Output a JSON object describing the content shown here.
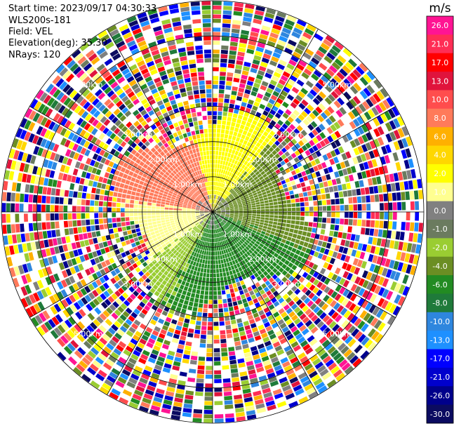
{
  "info": {
    "start_time": "Start time: 2023/09/17 04:30:33",
    "instrument": "WLS200s-181",
    "field": "Field: VEL",
    "elevation": "Elevation(deg): 35.30",
    "nrays": "NRays: 120"
  },
  "chart_data": {
    "type": "heatmap",
    "subtype": "ppi-polar",
    "field": "VEL",
    "nrays": 120,
    "max_range_km": 6.0,
    "range_rings_km": [
      1.0,
      2.0,
      3.0,
      5.0
    ],
    "ring_labels": [
      "1.00km",
      "2.00km",
      "3.00km",
      "5.00km"
    ],
    "colorbar": {
      "title": "m/s",
      "vmin": -30.0,
      "vmax": 30.0,
      "ticks": [
        "26.0",
        "21.0",
        "17.0",
        "13.0",
        "10.0",
        "8.0",
        "6.0",
        "4.0",
        "2.0",
        "1.0",
        "0.0",
        "-1.0",
        "-2.0",
        "-4.0",
        "-6.0",
        "-8.0",
        "-10.0",
        "-13.0",
        "-17.0",
        "-21.0",
        "-26.0",
        "-30.0"
      ],
      "colors": [
        "#ff1493",
        "#ff2d55",
        "#ff0000",
        "#e0143c",
        "#ff4d4d",
        "#ff7a5a",
        "#ffb000",
        "#ffd700",
        "#ffff00",
        "#ffff90",
        "#808080",
        "#6b7b5f",
        "#9acd32",
        "#6b8e23",
        "#228b22",
        "#1f7a3a",
        "#2e86de",
        "#1e90ff",
        "#0000ff",
        "#0000cd",
        "#00008b",
        "#0b0b60"
      ]
    },
    "regions": [
      {
        "direction": "north-west",
        "range_km": [
          0,
          2.5
        ],
        "value_approx": 4.0
      },
      {
        "direction": "north-east",
        "range_km": [
          0,
          2.5
        ],
        "value_approx": -4.0
      },
      {
        "direction": "south-east",
        "range_km": [
          0,
          2.5
        ],
        "value_approx": -6.0
      },
      {
        "direction": "south-west",
        "range_km": [
          0,
          2.5
        ],
        "value_approx": 2.0
      },
      {
        "direction": "all",
        "range_km": [
          3.0,
          6.0
        ],
        "value_approx": "noise"
      }
    ]
  }
}
